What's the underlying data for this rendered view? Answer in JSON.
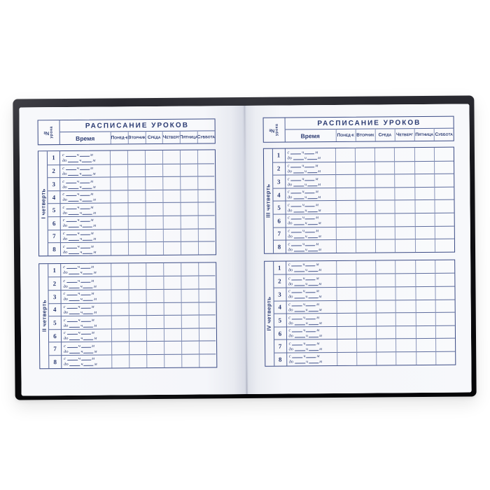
{
  "header": {
    "title": "РАСПИСАНИЕ  УРОКОВ",
    "number_col": {
      "line1": "№",
      "line2": "урока"
    },
    "time_col": "Время",
    "days": [
      "Понед-к",
      "Вторник",
      "Среда",
      "Четверг",
      "Пятница",
      "Суббота"
    ]
  },
  "quarters": [
    "I четверть",
    "II четверть",
    "III четверть",
    "IV четверть"
  ],
  "lesson_numbers": [
    "1",
    "2",
    "3",
    "4",
    "5",
    "6",
    "7",
    "8"
  ],
  "time_labels": {
    "from": "с",
    "to": "до",
    "hours": "ч",
    "minutes": "м"
  },
  "colors": {
    "ink": "#2b3b72",
    "paper": "#f5f6fa",
    "cover": "#101014",
    "background": "#ffffff"
  }
}
